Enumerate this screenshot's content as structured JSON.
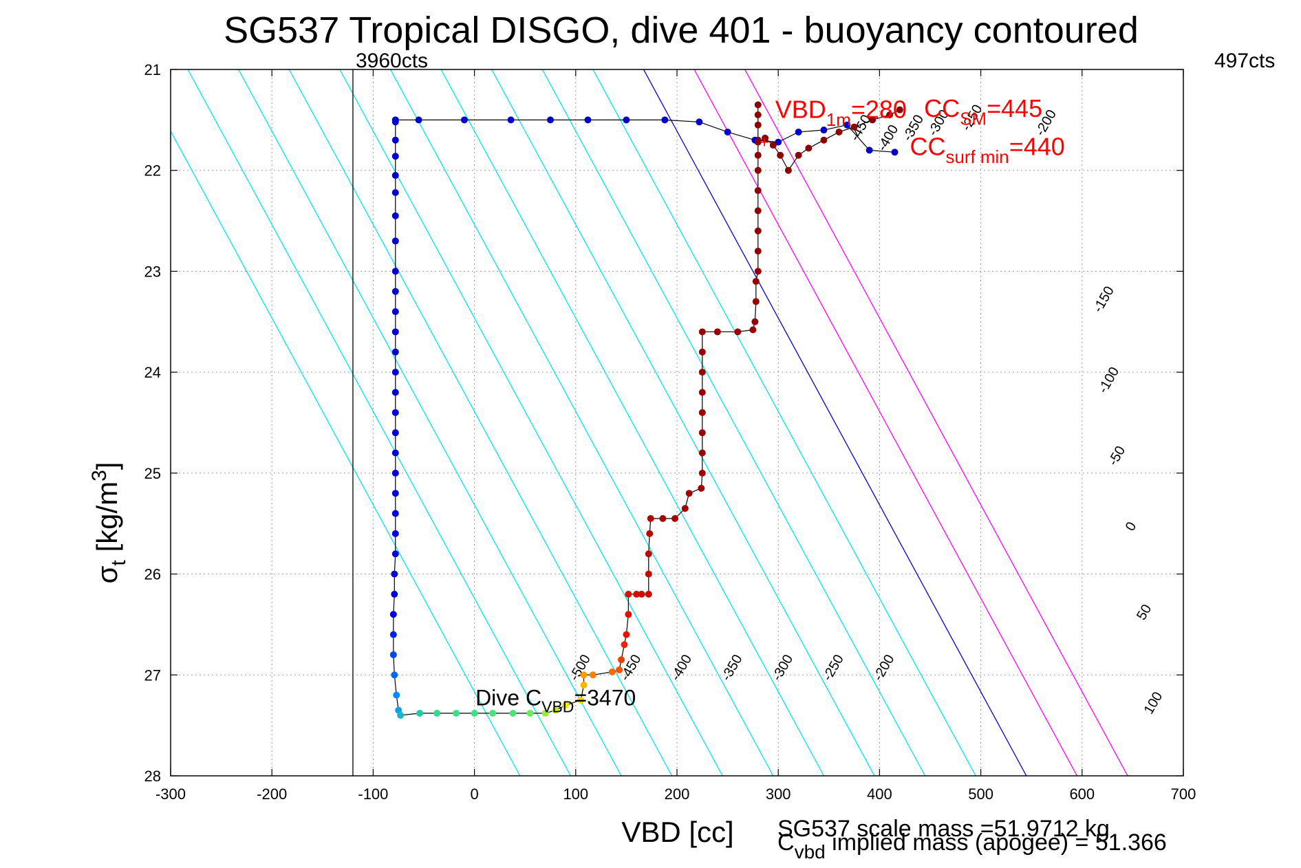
{
  "chart_data": {
    "type": "scatter",
    "title": "SG537 Tropical DISGO, dive 401 - buoyancy contoured",
    "xlabel": "VBD [cc]",
    "ylabel": {
      "sigma": "σ",
      "sub": "t",
      "unit_pre": " [kg/m",
      "unit_sup": "3",
      "unit_post": "]"
    },
    "xlim": [
      -300,
      700
    ],
    "ylim": [
      21,
      28
    ],
    "y_reversed": true,
    "grid": true,
    "xticks": [
      -300,
      -200,
      -100,
      0,
      100,
      200,
      300,
      400,
      500,
      600,
      700
    ],
    "yticks": [
      21,
      22,
      23,
      24,
      25,
      26,
      27,
      28
    ],
    "contours": {
      "slope_cc_per_kgm3": 54,
      "ref_sigma": 28,
      "levels": [
        -500,
        -450,
        -400,
        -350,
        -300,
        -250,
        -200,
        -150,
        -100,
        -50,
        0,
        50,
        100
      ],
      "vbd_at_sigma28": [
        45,
        95,
        145,
        195,
        245,
        295,
        345,
        395,
        445,
        495,
        545,
        595,
        645
      ],
      "colors": {
        "negative": "#00e5ee",
        "zero": "#0000cc",
        "positive": "#ff00ff"
      },
      "bottom_labels": [
        {
          "level": -500,
          "text": "-500",
          "vbd": 108,
          "sigma": 26.95
        },
        {
          "level": -450,
          "text": "-450",
          "vbd": 158,
          "sigma": 26.95
        },
        {
          "level": -400,
          "text": "-400",
          "vbd": 208,
          "sigma": 26.95
        },
        {
          "level": -350,
          "text": "-350",
          "vbd": 258,
          "sigma": 26.95
        },
        {
          "level": -300,
          "text": "-300",
          "vbd": 308,
          "sigma": 26.95
        },
        {
          "level": -250,
          "text": "-250",
          "vbd": 358,
          "sigma": 26.95
        },
        {
          "level": -200,
          "text": "-200",
          "vbd": 408,
          "sigma": 26.95
        }
      ],
      "right_labels": [
        {
          "level": -150,
          "text": "-150",
          "vbd": 625,
          "sigma": 23.3
        },
        {
          "level": -100,
          "text": "-100",
          "vbd": 630,
          "sigma": 24.1
        },
        {
          "level": -50,
          "text": "-50",
          "vbd": 638,
          "sigma": 24.85
        },
        {
          "level": 0,
          "text": "0",
          "vbd": 652,
          "sigma": 25.55
        },
        {
          "level": 50,
          "text": "50",
          "vbd": 665,
          "sigma": 26.4
        },
        {
          "level": 100,
          "text": "100",
          "vbd": 674,
          "sigma": 27.3
        }
      ],
      "top_labels": [
        {
          "level": -400,
          "text": "-400",
          "vbd": 412,
          "sigma": 21.7
        },
        {
          "level": -350,
          "text": "-350",
          "vbd": 437,
          "sigma": 21.6
        },
        {
          "level": -300,
          "text": "-300",
          "vbd": 462,
          "sigma": 21.55
        },
        {
          "level": -250,
          "text": "-250",
          "vbd": 495,
          "sigma": 21.5
        },
        {
          "level": -200,
          "text": "-200",
          "vbd": 568,
          "sigma": 21.55
        },
        {
          "level": -450,
          "text": "-450",
          "vbd": 385,
          "sigma": 21.6
        }
      ]
    },
    "vertical_markers": [
      {
        "vbd": -120,
        "label": "3960cts",
        "side": "left"
      },
      {
        "label": "497cts",
        "side": "right"
      }
    ],
    "series": [
      {
        "name": "",
        "description_free": true,
        "points": [
          [
            -78,
            21.5
          ],
          [
            -78,
            21.52
          ],
          [
            -78,
            21.7
          ],
          [
            -78,
            21.86
          ],
          [
            -78,
            22.05
          ],
          [
            -78,
            22.22
          ],
          [
            -78,
            22.45
          ],
          [
            -78,
            22.7
          ],
          [
            -78,
            23.0
          ],
          [
            -78,
            23.2
          ],
          [
            -78,
            23.4
          ],
          [
            -78,
            23.6
          ],
          [
            -78,
            23.8
          ],
          [
            -78,
            24.0
          ],
          [
            -78,
            24.2
          ],
          [
            -78,
            24.4
          ],
          [
            -78,
            24.6
          ],
          [
            -78,
            24.8
          ],
          [
            -78,
            25.0
          ],
          [
            -78,
            25.2
          ],
          [
            -78,
            25.4
          ],
          [
            -78,
            25.6
          ],
          [
            -78,
            25.8
          ],
          [
            -79,
            26.0
          ],
          [
            -79,
            26.2
          ],
          [
            -80,
            26.4
          ],
          [
            -80,
            26.6
          ],
          [
            -80,
            26.8
          ],
          [
            -79,
            27.0
          ],
          [
            -77,
            27.2
          ],
          [
            -75,
            27.35
          ],
          [
            -73,
            27.4
          ],
          [
            -54,
            27.38
          ],
          [
            -37,
            27.38
          ],
          [
            -18,
            27.38
          ],
          [
            0,
            27.38
          ],
          [
            18,
            27.38
          ],
          [
            38,
            27.38
          ],
          [
            55,
            27.38
          ],
          [
            70,
            27.38
          ],
          [
            80,
            27.35
          ],
          [
            90,
            27.3
          ],
          [
            105,
            27.25
          ],
          [
            108,
            27.1
          ],
          [
            108,
            27.0
          ],
          [
            117,
            27.0
          ],
          [
            136,
            26.97
          ],
          [
            143,
            26.95
          ],
          [
            145,
            26.85
          ],
          [
            148,
            26.7
          ],
          [
            150,
            26.6
          ],
          [
            152,
            26.4
          ],
          [
            152,
            26.2
          ],
          [
            160,
            26.2
          ],
          [
            165,
            26.2
          ],
          [
            172,
            26.2
          ],
          [
            172,
            26.0
          ],
          [
            172,
            25.8
          ],
          [
            173,
            25.6
          ],
          [
            174,
            25.45
          ],
          [
            186,
            25.45
          ],
          [
            198,
            25.45
          ],
          [
            208,
            25.35
          ],
          [
            212,
            25.2
          ],
          [
            224,
            25.15
          ],
          [
            225,
            25.0
          ],
          [
            225,
            24.8
          ],
          [
            225,
            24.6
          ],
          [
            225,
            24.4
          ],
          [
            225,
            24.2
          ],
          [
            225,
            24.0
          ],
          [
            225,
            23.8
          ],
          [
            225,
            23.6
          ],
          [
            240,
            23.6
          ],
          [
            260,
            23.6
          ],
          [
            275,
            23.58
          ],
          [
            277,
            23.5
          ],
          [
            278,
            23.3
          ],
          [
            278,
            23.1
          ],
          [
            280,
            23.0
          ],
          [
            280,
            22.8
          ],
          [
            280,
            22.6
          ],
          [
            280,
            22.4
          ],
          [
            280,
            22.2
          ],
          [
            280,
            22.0
          ],
          [
            280,
            21.85
          ],
          [
            280,
            21.7
          ],
          [
            280,
            21.55
          ],
          [
            280,
            21.45
          ],
          [
            280,
            21.35
          ]
        ]
      }
    ],
    "ascent_top_points": [
      [
        -78,
        21.5
      ],
      [
        -55,
        21.5
      ],
      [
        -10,
        21.5
      ],
      [
        36,
        21.5
      ],
      [
        75,
        21.5
      ],
      [
        112,
        21.5
      ],
      [
        150,
        21.5
      ],
      [
        188,
        21.5
      ],
      [
        222,
        21.52
      ],
      [
        250,
        21.62
      ],
      [
        277,
        21.7
      ],
      [
        300,
        21.72
      ],
      [
        320,
        21.62
      ],
      [
        345,
        21.6
      ],
      [
        368,
        21.55
      ],
      [
        390,
        21.8
      ],
      [
        415,
        21.82
      ]
    ],
    "surface_descent_points": [
      [
        280,
        21.72
      ],
      [
        287,
        21.68
      ],
      [
        295,
        21.75
      ],
      [
        302,
        21.85
      ],
      [
        310,
        22.0
      ],
      [
        320,
        21.85
      ],
      [
        330,
        21.78
      ],
      [
        345,
        21.7
      ],
      [
        360,
        21.62
      ],
      [
        375,
        21.57
      ],
      [
        393,
        21.5
      ],
      [
        410,
        21.45
      ],
      [
        420,
        21.4
      ]
    ],
    "annotations": {
      "vbd_1m": {
        "main": "VBD",
        "sub": "1m",
        "value": "=280",
        "vbd": 297,
        "sigma": 21.48
      },
      "cc_sm": {
        "main": "CC",
        "sub": "SM",
        "value": "=445",
        "vbd": 444,
        "sigma": 21.47
      },
      "cc_surf": {
        "main": "CC",
        "sub": "surf min",
        "value": "=440",
        "vbd": 430,
        "sigma": 21.85
      },
      "dive_c": {
        "main": "Dive C",
        "sub": "VBD",
        "value": "=3470",
        "vbd": 1,
        "sigma": 27.3
      }
    },
    "footer": {
      "scale_mass": "SG537 scale mass =51.9712 kg",
      "implied_mass_main": "C",
      "implied_mass_sub": "vbd",
      "implied_mass_rest": " implied mass (apogee) = 51.366"
    }
  }
}
